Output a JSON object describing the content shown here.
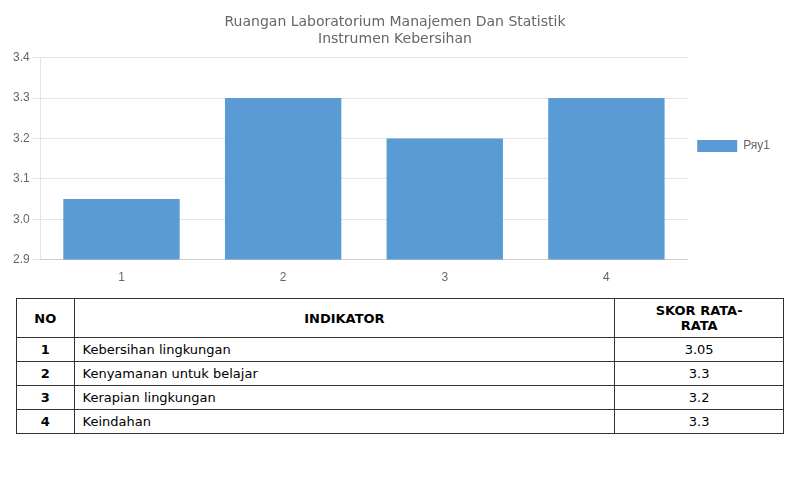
{
  "chart_data": {
    "type": "bar",
    "title": "Ruangan Laboratorium Manajemen Dan Statistik",
    "subtitle": "Instrumen Kebersihan",
    "categories": [
      1,
      2,
      3,
      4
    ],
    "series": [
      {
        "name": "Ряу1",
        "color": "#5B9BD5",
        "values": [
          3.05,
          3.3,
          3.2,
          3.3
        ]
      }
    ],
    "ylim": [
      2.9,
      3.4
    ],
    "yticks": [
      2.9,
      {
        "value": 3.0,
        "label": "3.0"
      },
      3.1,
      3.2,
      3.3,
      3.4
    ],
    "grid": true,
    "legend": "right",
    "table_headers": [
      "NO",
      "INDIKATOR",
      "SKOR RATA-\nRATA"
    ],
    "table_rows": [
      [
        "1",
        "Kebersihan lingkungan",
        "3.05"
      ],
      [
        "2",
        "Kenyamanan untuk belajar",
        "3.3"
      ],
      [
        "3",
        "Kerapian lingkungan",
        "3.2"
      ],
      [
        "4",
        "Keindahan",
        "3.3"
      ]
    ]
  }
}
